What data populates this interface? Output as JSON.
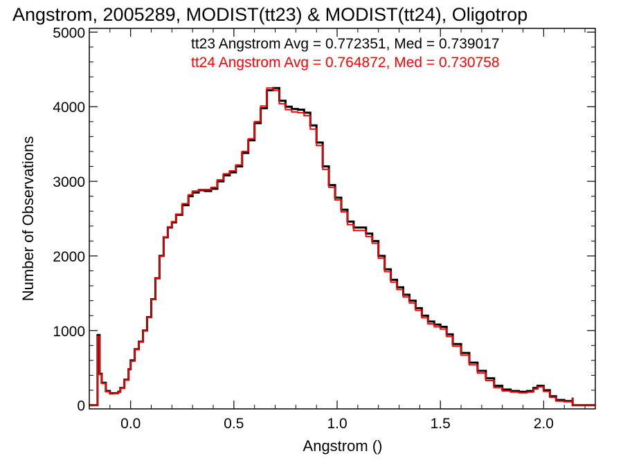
{
  "chart_data": {
    "type": "line",
    "title": "Angstrom, 2005289, MODIST(tt23) & MODIST(tt24), Oligotrop",
    "xlabel": "Angstrom ()",
    "ylabel": "Number of Observations",
    "xlim": [
      -0.2,
      2.25
    ],
    "ylim": [
      -50,
      5050
    ],
    "x_ticks": [
      "0.0",
      "0.5",
      "1.0",
      "1.5",
      "2.0"
    ],
    "y_ticks": [
      "0",
      "1000",
      "2000",
      "3000",
      "4000",
      "5000"
    ],
    "annotations": [
      {
        "text": "tt23 Angstrom Avg = 0.772351, Med = 0.739017",
        "color": "#000000"
      },
      {
        "text": "tt24 Angstrom Avg = 0.764872, Med = 0.730758",
        "color": "#ff0000"
      }
    ],
    "series": [
      {
        "color": "#000000",
        "points": [
          [
            -0.2,
            0
          ],
          [
            -0.16,
            0
          ],
          [
            -0.16,
            940
          ],
          [
            -0.15,
            940
          ],
          [
            -0.15,
            420
          ],
          [
            -0.14,
            420
          ],
          [
            -0.14,
            300
          ],
          [
            -0.12,
            300
          ],
          [
            -0.12,
            190
          ],
          [
            -0.1,
            160
          ],
          [
            -0.08,
            160
          ],
          [
            -0.06,
            180
          ],
          [
            -0.05,
            230
          ],
          [
            -0.03,
            340
          ],
          [
            -0.01,
            480
          ],
          [
            0.0,
            600
          ],
          [
            0.02,
            750
          ],
          [
            0.04,
            850
          ],
          [
            0.06,
            1000
          ],
          [
            0.08,
            1180
          ],
          [
            0.1,
            1420
          ],
          [
            0.12,
            1700
          ],
          [
            0.14,
            2000
          ],
          [
            0.16,
            2250
          ],
          [
            0.18,
            2380
          ],
          [
            0.2,
            2450
          ],
          [
            0.22,
            2550
          ],
          [
            0.25,
            2680
          ],
          [
            0.28,
            2800
          ],
          [
            0.3,
            2850
          ],
          [
            0.33,
            2880
          ],
          [
            0.36,
            2870
          ],
          [
            0.39,
            2900
          ],
          [
            0.42,
            3000
          ],
          [
            0.45,
            3080
          ],
          [
            0.48,
            3120
          ],
          [
            0.51,
            3200
          ],
          [
            0.54,
            3380
          ],
          [
            0.57,
            3550
          ],
          [
            0.6,
            3780
          ],
          [
            0.63,
            3980
          ],
          [
            0.66,
            4220
          ],
          [
            0.69,
            4250
          ],
          [
            0.72,
            4080
          ],
          [
            0.75,
            4000
          ],
          [
            0.78,
            3970
          ],
          [
            0.81,
            3960
          ],
          [
            0.84,
            3920
          ],
          [
            0.87,
            3750
          ],
          [
            0.9,
            3520
          ],
          [
            0.93,
            3200
          ],
          [
            0.96,
            2950
          ],
          [
            0.99,
            2780
          ],
          [
            1.02,
            2620
          ],
          [
            1.05,
            2460
          ],
          [
            1.08,
            2380
          ],
          [
            1.11,
            2380
          ],
          [
            1.14,
            2300
          ],
          [
            1.17,
            2200
          ],
          [
            1.2,
            2000
          ],
          [
            1.23,
            1820
          ],
          [
            1.26,
            1680
          ],
          [
            1.29,
            1580
          ],
          [
            1.32,
            1480
          ],
          [
            1.35,
            1400
          ],
          [
            1.38,
            1300
          ],
          [
            1.41,
            1200
          ],
          [
            1.44,
            1120
          ],
          [
            1.47,
            1080
          ],
          [
            1.5,
            1050
          ],
          [
            1.53,
            950
          ],
          [
            1.56,
            820
          ],
          [
            1.6,
            700
          ],
          [
            1.64,
            570
          ],
          [
            1.68,
            460
          ],
          [
            1.72,
            360
          ],
          [
            1.76,
            260
          ],
          [
            1.8,
            210
          ],
          [
            1.84,
            190
          ],
          [
            1.88,
            180
          ],
          [
            1.92,
            190
          ],
          [
            1.95,
            230
          ],
          [
            1.97,
            260
          ],
          [
            2.0,
            200
          ],
          [
            2.03,
            120
          ],
          [
            2.06,
            70
          ],
          [
            2.1,
            55
          ],
          [
            2.13,
            55
          ],
          [
            2.14,
            100
          ],
          [
            2.14,
            0
          ],
          [
            2.25,
            0
          ]
        ]
      },
      {
        "color": "#ff0000",
        "points": [
          [
            -0.2,
            0
          ],
          [
            -0.16,
            0
          ],
          [
            -0.16,
            920
          ],
          [
            -0.15,
            920
          ],
          [
            -0.15,
            410
          ],
          [
            -0.14,
            410
          ],
          [
            -0.14,
            290
          ],
          [
            -0.12,
            290
          ],
          [
            -0.12,
            180
          ],
          [
            -0.1,
            150
          ],
          [
            -0.08,
            155
          ],
          [
            -0.06,
            175
          ],
          [
            -0.05,
            225
          ],
          [
            -0.03,
            335
          ],
          [
            -0.01,
            475
          ],
          [
            0.0,
            590
          ],
          [
            0.02,
            745
          ],
          [
            0.04,
            845
          ],
          [
            0.06,
            995
          ],
          [
            0.08,
            1175
          ],
          [
            0.1,
            1415
          ],
          [
            0.12,
            1695
          ],
          [
            0.14,
            1995
          ],
          [
            0.16,
            2255
          ],
          [
            0.18,
            2390
          ],
          [
            0.2,
            2460
          ],
          [
            0.22,
            2560
          ],
          [
            0.25,
            2700
          ],
          [
            0.28,
            2820
          ],
          [
            0.3,
            2870
          ],
          [
            0.33,
            2890
          ],
          [
            0.36,
            2890
          ],
          [
            0.39,
            2920
          ],
          [
            0.42,
            3020
          ],
          [
            0.45,
            3100
          ],
          [
            0.48,
            3140
          ],
          [
            0.51,
            3220
          ],
          [
            0.54,
            3400
          ],
          [
            0.57,
            3570
          ],
          [
            0.6,
            3800
          ],
          [
            0.63,
            4010
          ],
          [
            0.66,
            4250
          ],
          [
            0.69,
            4220
          ],
          [
            0.72,
            4040
          ],
          [
            0.75,
            3960
          ],
          [
            0.78,
            3930
          ],
          [
            0.81,
            3920
          ],
          [
            0.84,
            3880
          ],
          [
            0.87,
            3700
          ],
          [
            0.9,
            3480
          ],
          [
            0.93,
            3160
          ],
          [
            0.96,
            2920
          ],
          [
            0.99,
            2750
          ],
          [
            1.02,
            2590
          ],
          [
            1.05,
            2420
          ],
          [
            1.08,
            2340
          ],
          [
            1.11,
            2340
          ],
          [
            1.14,
            2260
          ],
          [
            1.17,
            2170
          ],
          [
            1.2,
            1970
          ],
          [
            1.23,
            1790
          ],
          [
            1.26,
            1650
          ],
          [
            1.29,
            1550
          ],
          [
            1.32,
            1450
          ],
          [
            1.35,
            1370
          ],
          [
            1.38,
            1270
          ],
          [
            1.41,
            1170
          ],
          [
            1.44,
            1090
          ],
          [
            1.47,
            1050
          ],
          [
            1.5,
            1020
          ],
          [
            1.53,
            920
          ],
          [
            1.56,
            790
          ],
          [
            1.6,
            670
          ],
          [
            1.64,
            540
          ],
          [
            1.68,
            430
          ],
          [
            1.72,
            330
          ],
          [
            1.76,
            235
          ],
          [
            1.8,
            190
          ],
          [
            1.84,
            175
          ],
          [
            1.88,
            165
          ],
          [
            1.92,
            175
          ],
          [
            1.95,
            215
          ],
          [
            1.97,
            245
          ],
          [
            2.0,
            185
          ],
          [
            2.03,
            105
          ],
          [
            2.06,
            55
          ],
          [
            2.1,
            45
          ],
          [
            2.13,
            45
          ],
          [
            2.14,
            100
          ],
          [
            2.14,
            0
          ],
          [
            2.25,
            0
          ]
        ]
      }
    ]
  }
}
